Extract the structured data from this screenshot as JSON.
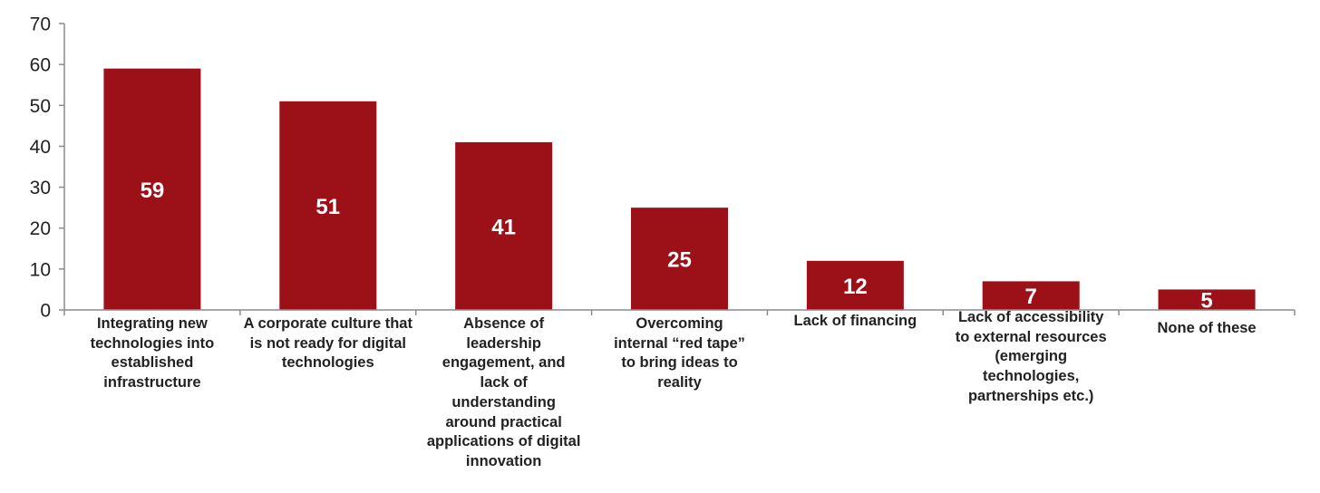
{
  "chart_data": {
    "type": "bar",
    "categories": [
      "Integrating new technologies into established infrastructure",
      "A corporate culture that is not ready for digital technologies",
      "Absence of leadership engagement, and lack of understanding around practical applications of digital innovation",
      "Overcoming internal “red tape” to bring ideas to reality",
      "Lack of financing",
      "Lack of accessibility to external resources (emerging technologies, partnerships etc.)",
      "None of these"
    ],
    "values": [
      59,
      51,
      41,
      25,
      12,
      7,
      5
    ],
    "data_labels": [
      "59",
      "51",
      "41",
      "25",
      "12",
      "7",
      "5"
    ],
    "ylim": [
      0,
      70
    ],
    "yticks": [
      0,
      10,
      20,
      30,
      40,
      50,
      60,
      70
    ],
    "ytick_labels": [
      "0",
      "10",
      "20",
      "30",
      "40",
      "50",
      "60",
      "70"
    ],
    "title": "",
    "xlabel": "",
    "ylabel": "",
    "grid": false,
    "legend": "none",
    "bar_color": "#9b1117",
    "axis_color": "#8c8c8c",
    "text_color": "#222222",
    "label_color": "#ffffff"
  }
}
